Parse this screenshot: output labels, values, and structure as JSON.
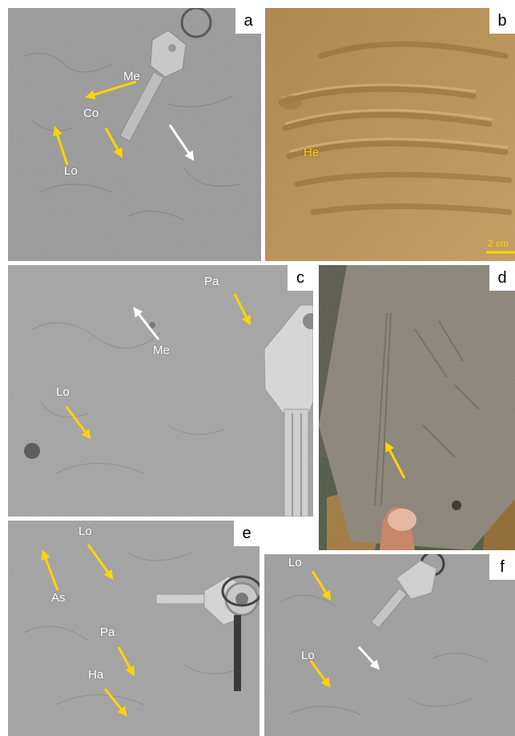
{
  "colors": {
    "arrow_yellow": "#ffd400",
    "arrow_white": "#ffffff",
    "label_yellow": "#ffd400"
  },
  "panels": {
    "a": {
      "letter": "a",
      "labels": {
        "me": "Me",
        "co": "Co",
        "lo": "Lo"
      }
    },
    "b": {
      "letter": "b",
      "labels": {
        "he": "He"
      },
      "scale_bar": "2 cm"
    },
    "c": {
      "letter": "c",
      "labels": {
        "pa": "Pa",
        "me": "Me",
        "lo": "Lo"
      }
    },
    "d": {
      "letter": "d"
    },
    "e": {
      "letter": "e",
      "labels": {
        "lo": "Lo",
        "as": "As",
        "pa": "Pa",
        "ha": "Ha"
      }
    },
    "f": {
      "letter": "f",
      "labels": {
        "lo1": "Lo",
        "lo2": "Lo"
      }
    }
  }
}
